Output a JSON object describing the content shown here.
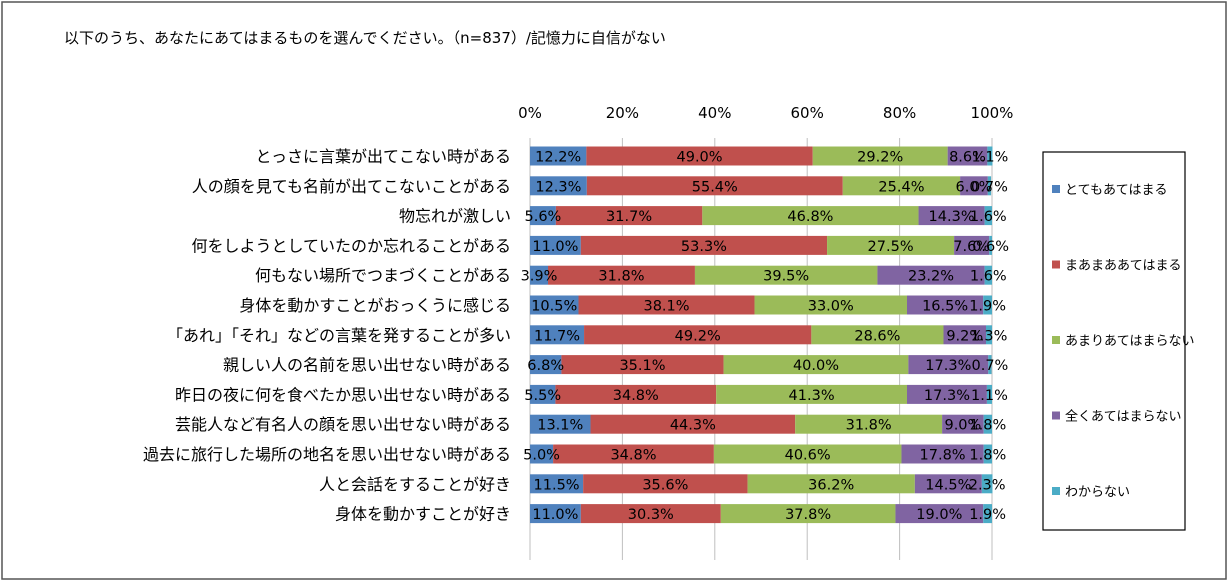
{
  "chart_data": {
    "type": "bar",
    "orientation": "horizontal",
    "stacked": true,
    "percent": true,
    "title": "以下のうち、あなたにあてはまるものを選んでください。（n=837）/記憶力に自信がない",
    "xlim": [
      0,
      100
    ],
    "x_ticks": [
      "0%",
      "20%",
      "40%",
      "60%",
      "80%",
      "100%"
    ],
    "legend_position": "right",
    "categories": [
      "とっさに言葉が出てこない時がある",
      "人の顔を見ても名前が出てこないことがある",
      "物忘れが激しい",
      "何をしようとしていたのか忘れることがある",
      "何もない場所でつまづくことがある",
      "身体を動かすことがおっくうに感じる",
      "「あれ」「それ」などの言葉を発することが多い",
      "親しい人の名前を思い出せない時がある",
      "昨日の夜に何を食べたか思い出せない時がある",
      "芸能人など有名人の顔を思い出せない時がある",
      "過去に旅行した場所の地名を思い出せない時がある",
      "人と会話をすることが好き",
      "身体を動かすことが好き"
    ],
    "series": [
      {
        "name": "とてもあてはまる",
        "color": "#4F81BD",
        "values": [
          12.2,
          12.3,
          5.6,
          11.0,
          3.9,
          10.5,
          11.7,
          6.8,
          5.5,
          13.1,
          5.0,
          11.5,
          11.0
        ],
        "labels": [
          "12.2%",
          "12.3%",
          "5.6%",
          "11.0%",
          "3.9%",
          "10.5%",
          "11.7%",
          "6.8%",
          "5.5%",
          "13.1%",
          "5.0%",
          "11.5%",
          "11.0%"
        ]
      },
      {
        "name": "まあまああてはまる",
        "color": "#C0504D",
        "values": [
          49.0,
          55.4,
          31.7,
          53.3,
          31.8,
          38.1,
          49.2,
          35.1,
          34.8,
          44.3,
          34.8,
          35.6,
          30.3
        ],
        "labels": [
          "49.0%",
          "55.4%",
          "31.7%",
          "53.3%",
          "31.8%",
          "38.1%",
          "49.2%",
          "35.1%",
          "34.8%",
          "44.3%",
          "34.8%",
          "35.6%",
          "30.3%"
        ]
      },
      {
        "name": "あまりあてはまらない",
        "color": "#9BBB59",
        "values": [
          29.2,
          25.4,
          46.8,
          27.5,
          39.5,
          33.0,
          28.6,
          40.0,
          41.3,
          31.8,
          40.6,
          36.2,
          37.8
        ],
        "labels": [
          "29.2%",
          "25.4%",
          "46.8%",
          "27.5%",
          "39.5%",
          "33.0%",
          "28.6%",
          "40.0%",
          "41.3%",
          "31.8%",
          "40.6%",
          "36.2%",
          "37.8%"
        ]
      },
      {
        "name": "全くあてはまらない",
        "color": "#8064A2",
        "values": [
          8.6,
          6.0,
          14.3,
          7.6,
          23.2,
          16.5,
          9.2,
          17.3,
          17.3,
          9.0,
          17.8,
          14.5,
          19.0
        ],
        "labels": [
          "8.6%",
          "6.0%",
          "14.3%",
          "7.6%",
          "23.2%",
          "16.5%",
          "9.2%",
          "17.3%",
          "17.3%",
          "9.0%",
          "17.8%",
          "14.5%",
          "19.0%"
        ]
      },
      {
        "name": "わからない",
        "color": "#4BACC6",
        "values": [
          1.1,
          0.7,
          1.6,
          0.6,
          1.6,
          1.9,
          1.3,
          0.7,
          1.1,
          1.8,
          1.8,
          2.3,
          1.9
        ],
        "labels": [
          "1.1%",
          "0.7%",
          "1.6%",
          "0.6%",
          "1.6%",
          "1.9%",
          "1.3%",
          "0.7%",
          "1.1%",
          "1.8%",
          "1.8%",
          "2.3%",
          "1.9%"
        ]
      }
    ]
  }
}
